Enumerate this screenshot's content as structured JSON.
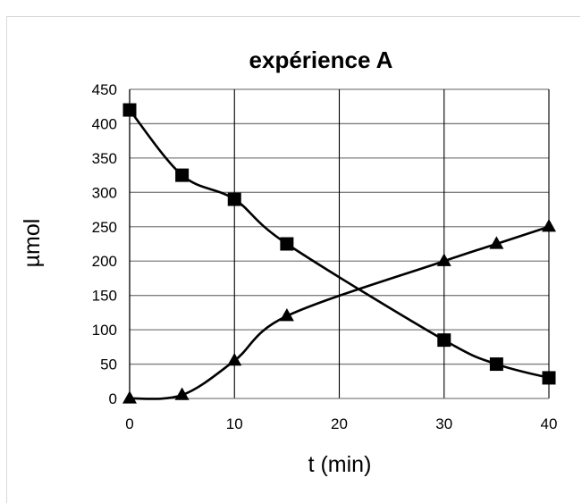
{
  "chart_data": {
    "type": "line",
    "title": "expérience A",
    "xlabel": "t (min)",
    "ylabel": "µmol",
    "xlim": [
      0,
      40
    ],
    "ylim": [
      0,
      450
    ],
    "x_ticks": [
      "0",
      "10",
      "20",
      "30",
      "40"
    ],
    "y_ticks": [
      "0",
      "50",
      "100",
      "150",
      "200",
      "250",
      "300",
      "350",
      "400",
      "450"
    ],
    "grid": true,
    "legend": "none",
    "series": [
      {
        "marker": "square",
        "color": "#000000",
        "x": [
          0,
          5,
          10,
          15,
          30,
          35,
          40
        ],
        "y": [
          420,
          325,
          290,
          225,
          85,
          50,
          30
        ]
      },
      {
        "marker": "triangle",
        "color": "#000000",
        "x": [
          0,
          5,
          10,
          15,
          30,
          35,
          40
        ],
        "y": [
          0,
          5,
          55,
          120,
          200,
          225,
          250
        ]
      }
    ]
  }
}
